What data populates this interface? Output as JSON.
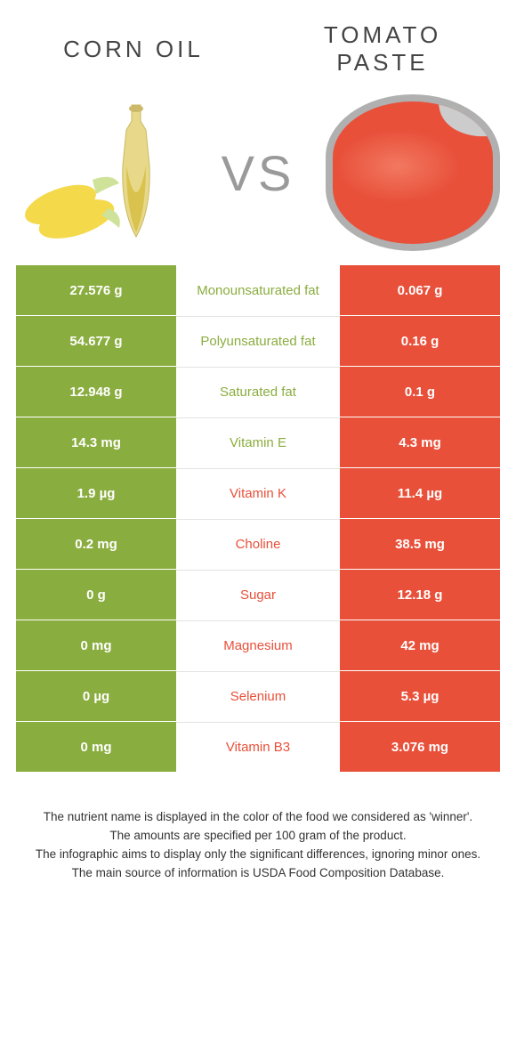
{
  "foods": {
    "left": {
      "title": "CORN OIL"
    },
    "right": {
      "title": "TOMATO\nPASTE"
    }
  },
  "vs": "VS",
  "colors": {
    "green": "#8aad3f",
    "red": "#e8503a",
    "row_border": "#e4e4e4",
    "bg": "#ffffff",
    "title_text": "#444444",
    "vs_text": "#9a9a9a"
  },
  "table": {
    "type": "comparison-table",
    "rows": [
      {
        "nutrient": "Monounsaturated fat",
        "left": "27.576 g",
        "right": "0.067 g",
        "winner": "left"
      },
      {
        "nutrient": "Polyunsaturated fat",
        "left": "54.677 g",
        "right": "0.16 g",
        "winner": "left"
      },
      {
        "nutrient": "Saturated fat",
        "left": "12.948 g",
        "right": "0.1 g",
        "winner": "left"
      },
      {
        "nutrient": "Vitamin E",
        "left": "14.3 mg",
        "right": "4.3 mg",
        "winner": "left"
      },
      {
        "nutrient": "Vitamin K",
        "left": "1.9 µg",
        "right": "11.4 µg",
        "winner": "right"
      },
      {
        "nutrient": "Choline",
        "left": "0.2 mg",
        "right": "38.5 mg",
        "winner": "right"
      },
      {
        "nutrient": "Sugar",
        "left": "0 g",
        "right": "12.18 g",
        "winner": "right"
      },
      {
        "nutrient": "Magnesium",
        "left": "0 mg",
        "right": "42 mg",
        "winner": "right"
      },
      {
        "nutrient": "Selenium",
        "left": "0 µg",
        "right": "5.3 µg",
        "winner": "right"
      },
      {
        "nutrient": "Vitamin B3",
        "left": "0 mg",
        "right": "3.076 mg",
        "winner": "right"
      }
    ]
  },
  "footer": {
    "line1": "The nutrient name is displayed in the color of the food we considered as 'winner'.",
    "line2": "The amounts are specified per 100 gram of the product.",
    "line3": "The infographic aims to display only the significant differences, ignoring minor ones.",
    "line4": "The main source of information is USDA Food Composition Database."
  }
}
